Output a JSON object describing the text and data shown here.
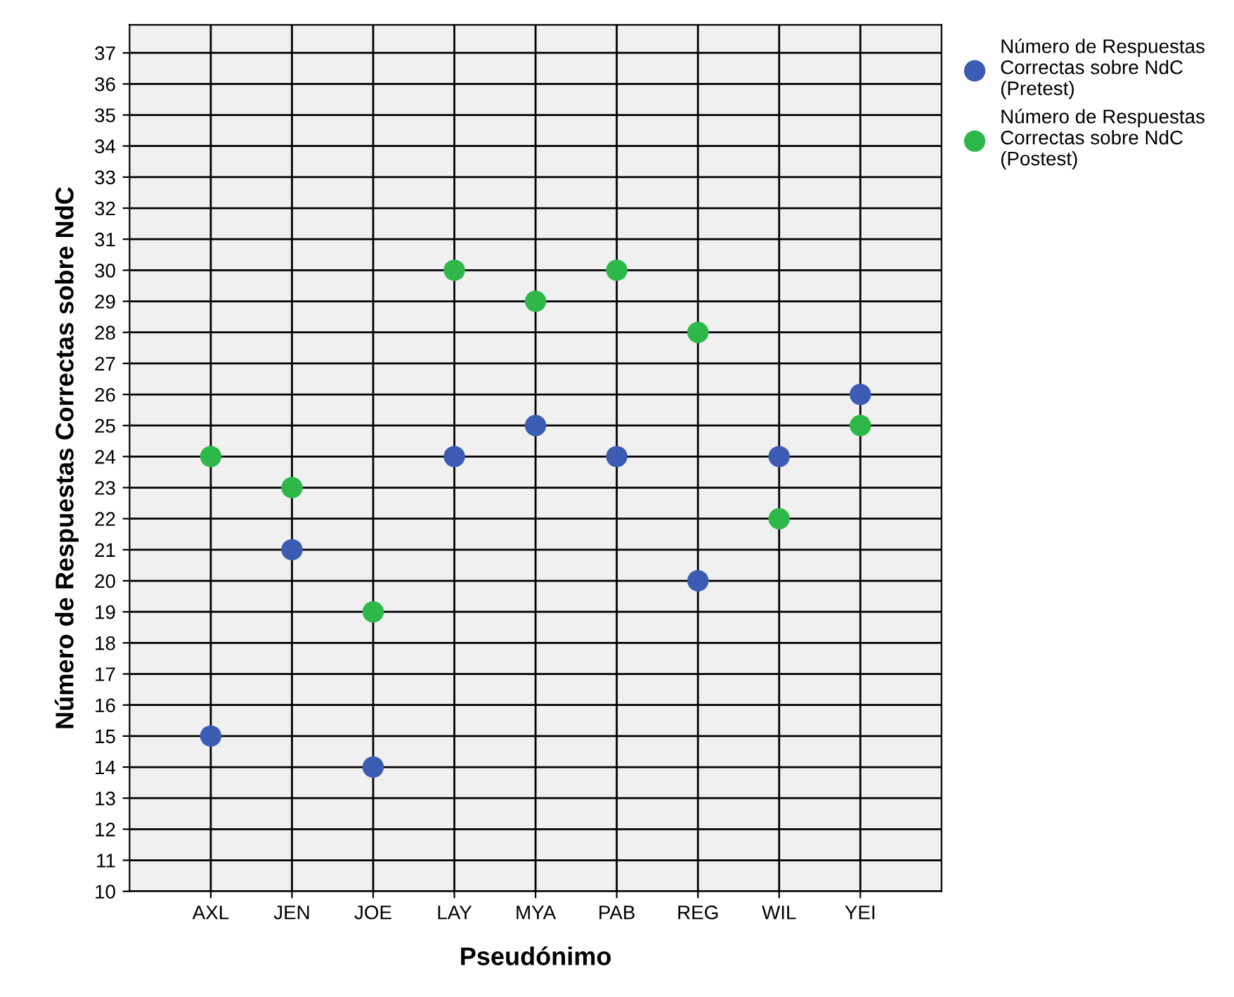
{
  "chart_data": {
    "type": "scatter",
    "xlabel": "Pseudónimo",
    "ylabel": "Número de Respuestas Correctas sobre NdC",
    "categories": [
      "AXL",
      "JEN",
      "JOE",
      "LAY",
      "MYA",
      "PAB",
      "REG",
      "WIL",
      "YEI"
    ],
    "series": [
      {
        "name": "Número de Respuestas Correctas sobre NdC (Pretest)",
        "color": "#3c5cb4",
        "values": [
          15,
          21,
          14,
          24,
          25,
          24,
          20,
          24,
          26
        ]
      },
      {
        "name": "Número de Respuestas Correctas sobre NdC (Postest)",
        "color": "#2fb84a",
        "values": [
          24,
          23,
          19,
          30,
          29,
          30,
          28,
          22,
          25
        ]
      }
    ],
    "ylim": [
      10,
      37.9
    ],
    "yticks": [
      10,
      11,
      12,
      13,
      14,
      15,
      16,
      17,
      18,
      19,
      20,
      21,
      22,
      23,
      24,
      25,
      26,
      27,
      28,
      29,
      30,
      31,
      32,
      33,
      34,
      35,
      36,
      37
    ],
    "grid": true,
    "legend": "top right",
    "marker": "circle"
  }
}
